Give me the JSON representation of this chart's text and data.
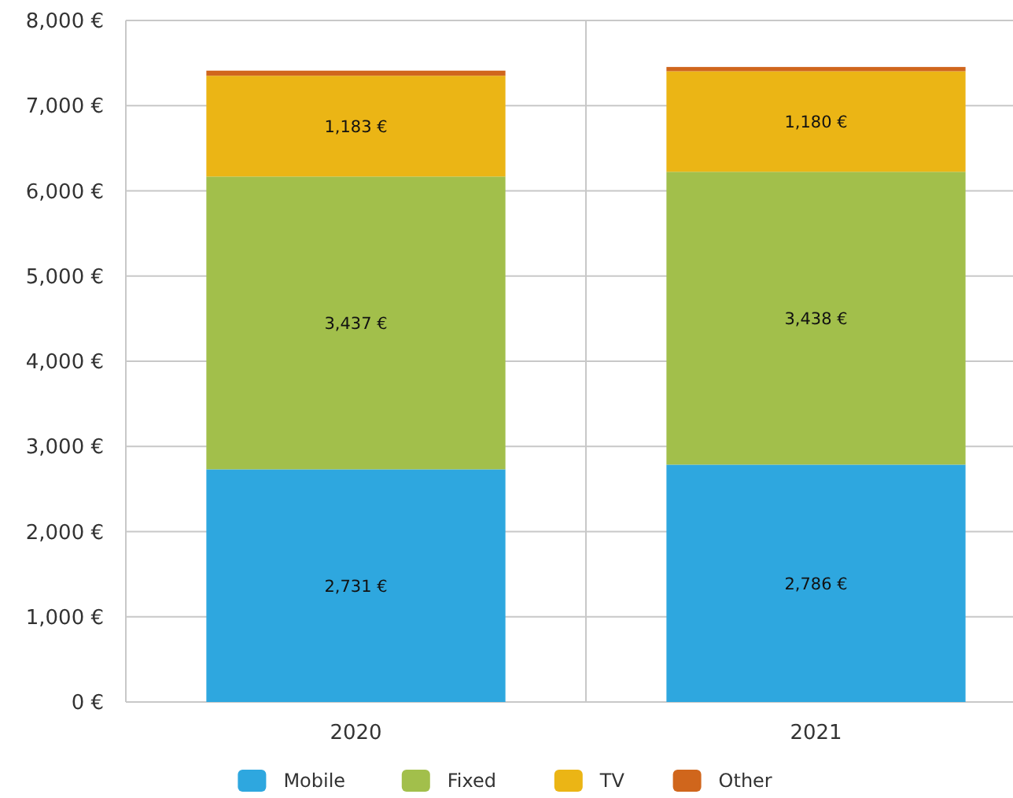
{
  "chart_data": {
    "type": "bar",
    "stacked": true,
    "categories": [
      "2020",
      "2021"
    ],
    "series": [
      {
        "name": "Mobile",
        "color": "#2ea7df",
        "values": [
          2731,
          2786
        ],
        "value_labels": [
          "2,731 €",
          "2,786 €"
        ]
      },
      {
        "name": "Fixed",
        "color": "#a2bf4b",
        "values": [
          3437,
          3438
        ],
        "value_labels": [
          "3,437 €",
          "3,438 €"
        ]
      },
      {
        "name": "TV",
        "color": "#ebb515",
        "values": [
          1183,
          1180
        ],
        "value_labels": [
          "1,183 €",
          "1,180 €"
        ]
      },
      {
        "name": "Other",
        "color": "#d0661c",
        "values": [
          60,
          50
        ]
      }
    ],
    "ylim": [
      0,
      8000
    ],
    "yticks": [
      {
        "value": 0,
        "label": "0 €"
      },
      {
        "value": 1000,
        "label": "1,000 €"
      },
      {
        "value": 2000,
        "label": "2,000 €"
      },
      {
        "value": 3000,
        "label": "3,000 €"
      },
      {
        "value": 4000,
        "label": "4,000 €"
      },
      {
        "value": 5000,
        "label": "5,000 €"
      },
      {
        "value": 6000,
        "label": "6,000 €"
      },
      {
        "value": 7000,
        "label": "7,000 €"
      },
      {
        "value": 8000,
        "label": "8,000 €"
      }
    ],
    "grid": true,
    "legend": "bottom"
  }
}
